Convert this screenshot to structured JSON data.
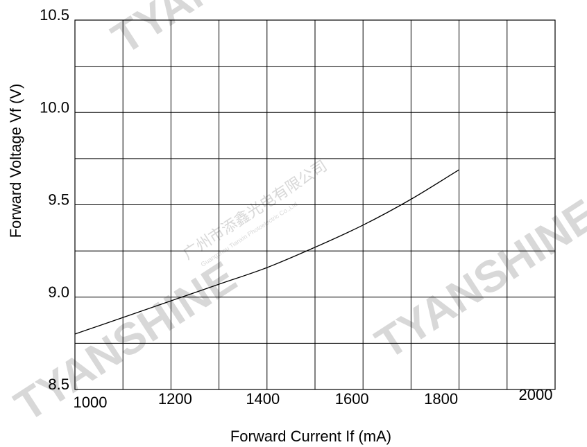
{
  "watermark": {
    "brand": "TYANSHINE",
    "company_cn": "广州市添鑫光电有限公司",
    "company_en": "Guangzhou Tianxin Photoelectric Co.,Ltd"
  },
  "chart_data": {
    "type": "line",
    "xlabel": "Forward Current  If (mA)",
    "ylabel": "Forward Voltage Vf (V)",
    "xlim": [
      1000,
      2000
    ],
    "ylim": [
      8.5,
      10.5
    ],
    "x_ticks": [
      "1000",
      "1200",
      "1400",
      "1600",
      "1800",
      "2000"
    ],
    "y_ticks": [
      "8.5",
      "9.0",
      "9.5",
      "10.0",
      "10.5"
    ],
    "grid": true,
    "series": [
      {
        "x": [
          1000,
          1100,
          1200,
          1300,
          1400,
          1500,
          1600,
          1700,
          1800
        ],
        "y": [
          8.8,
          8.89,
          8.98,
          9.07,
          9.16,
          9.27,
          9.39,
          9.53,
          9.69
        ]
      }
    ]
  }
}
